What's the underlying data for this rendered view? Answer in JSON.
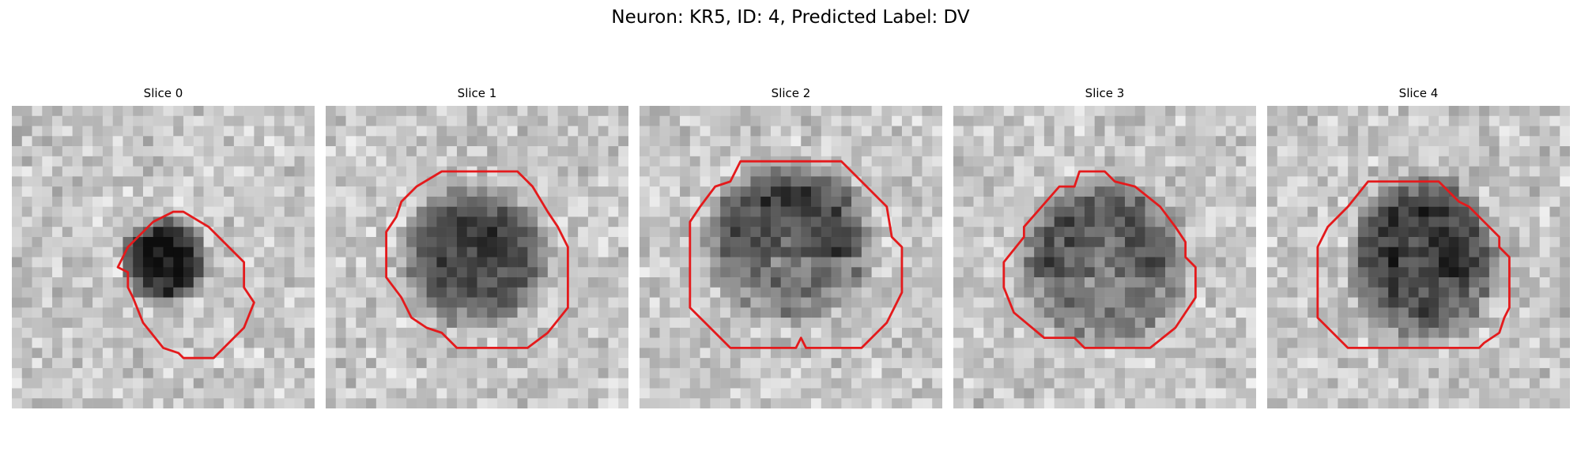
{
  "figure": {
    "title": "Neuron: KR5, ID: 4, Predicted Label: DV",
    "contour_color": "#e41a1c",
    "colormap": "grayscale"
  },
  "slices": [
    {
      "title": "Slice 0"
    },
    {
      "title": "Slice 1"
    },
    {
      "title": "Slice 2"
    },
    {
      "title": "Slice 3"
    },
    {
      "title": "Slice 4"
    }
  ]
}
